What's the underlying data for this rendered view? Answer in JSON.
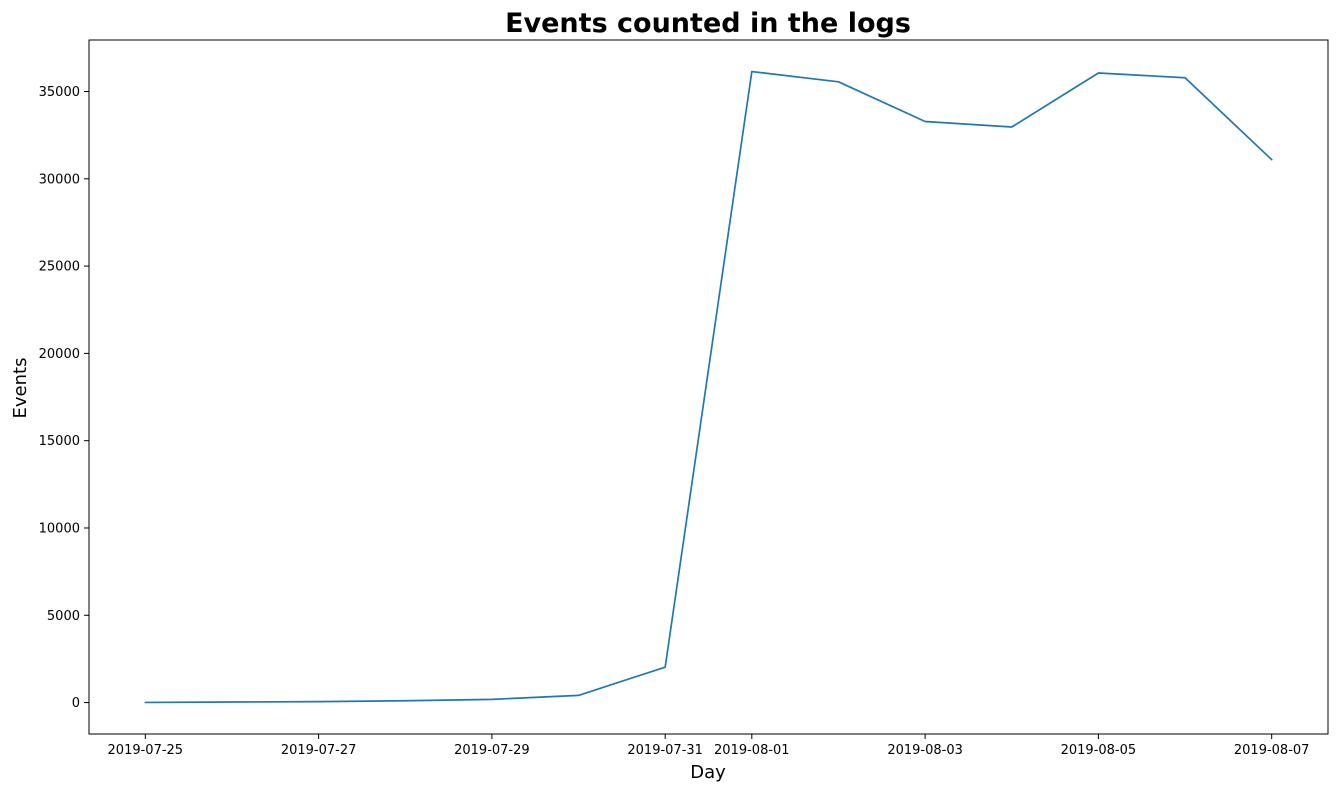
{
  "chart_data": {
    "type": "line",
    "title": "Events counted in the logs",
    "xlabel": "Day",
    "ylabel": "Events",
    "x": [
      "2019-07-25",
      "2019-07-26",
      "2019-07-27",
      "2019-07-28",
      "2019-07-29",
      "2019-07-30",
      "2019-07-31",
      "2019-08-01",
      "2019-08-02",
      "2019-08-03",
      "2019-08-04",
      "2019-08-05",
      "2019-08-06",
      "2019-08-07"
    ],
    "series": [
      {
        "values": [
          9,
          31,
          55,
          105,
          184,
          412,
          2030,
          36141,
          35554,
          33282,
          32968,
          36058,
          35788,
          31096
        ]
      }
    ],
    "xticks": [
      "2019-07-25",
      "2019-07-27",
      "2019-07-29",
      "2019-07-31",
      "2019-08-01",
      "2019-08-03",
      "2019-08-05",
      "2019-08-07"
    ],
    "xlim": [
      "2019-07-24T08:24",
      "2019-08-07T15:36"
    ],
    "yticks": [
      0,
      5000,
      10000,
      15000,
      20000,
      25000,
      30000,
      35000
    ],
    "ylim": [
      -1800,
      37950
    ],
    "grid": false,
    "colors": {
      "line": "#1f77b4"
    }
  }
}
